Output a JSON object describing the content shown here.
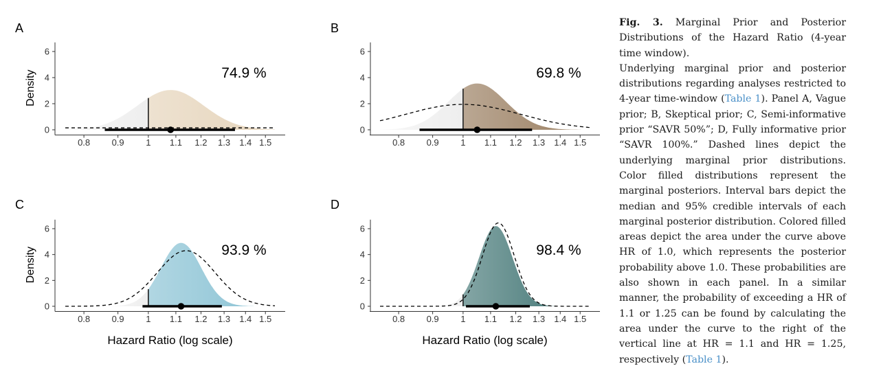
{
  "caption": {
    "label": "Fig. 3.",
    "title": "Marginal Prior and Posterior Distributions of the Hazard Ratio (4-year time window).",
    "body_before_link1": "Underlying marginal prior and posterior distributions regarding analyses restricted to 4-year time-window (",
    "link1": "Table 1",
    "body_after_link1": "). Panel A, Vague prior; B, Skeptical prior; C, Semi-informative prior “SAVR 50%”; D, Fully informative prior “SAVR 100%.” Dashed lines depict the underlying marginal prior distributions. Color filled distributions represent the marginal posteriors. Interval bars depict the median and 95% credible intervals of each marginal posterior distribution. Colored filled areas depict the area under the curve above HR of 1.0, which represents the posterior probability above 1.0. These probabilities are also shown in each panel. In a similar manner, the probability of exceeding a HR of 1.1 or 1.25 can be found by calculating the area under the curve to the right of the vertical line at HR = 1.1 and HR = 1.25, respectively (",
    "link2": "Table 1",
    "body_after_link2": ")."
  },
  "chart_data": [
    {
      "type": "area",
      "panel": "A",
      "prob_label": "74.9 %",
      "ylabel": "Density",
      "xlabel": "",
      "x_scale": "log",
      "xlim": [
        0.75,
        1.55
      ],
      "ylim": [
        -0.4,
        7.0
      ],
      "xticks": [
        0.8,
        0.9,
        1,
        1.1,
        1.2,
        1.3,
        1.4,
        1.5
      ],
      "xtick_labels": [
        "0.8",
        "0.9",
        "1",
        "1.1",
        "1.2",
        "1.3",
        "1.4",
        "1.5"
      ],
      "yticks": [
        0,
        2,
        4,
        6
      ],
      "posterior": {
        "median": 1.08,
        "ci": [
          0.86,
          1.35
        ],
        "sd_log": 0.115,
        "peak_density": 3.05
      },
      "prior": {
        "median": 1.0,
        "sd_log": 3.0,
        "peak_density": 0.15
      },
      "threshold": 1.0,
      "fill_color": "#e6d5bc"
    },
    {
      "type": "area",
      "panel": "B",
      "prob_label": "69.8 %",
      "ylabel": "",
      "xlabel": "",
      "x_scale": "log",
      "xlim": [
        0.75,
        1.55
      ],
      "ylim": [
        -0.4,
        7.0
      ],
      "xticks": [
        0.8,
        0.9,
        1,
        1.1,
        1.2,
        1.3,
        1.4,
        1.5
      ],
      "xtick_labels": [
        "0.8",
        "0.9",
        "1",
        "1.1",
        "1.2",
        "1.3",
        "1.4",
        "1.5"
      ],
      "yticks": [
        0,
        2,
        4,
        6
      ],
      "posterior": {
        "median": 1.05,
        "ci": [
          0.86,
          1.27
        ],
        "sd_log": 0.1,
        "peak_density": 3.55
      },
      "prior": {
        "median": 1.0,
        "sd_log": 0.2,
        "peak_density": 1.95
      },
      "threshold": 1.0,
      "fill_color": "#9c8164"
    },
    {
      "type": "area",
      "panel": "C",
      "prob_label": "93.9 %",
      "ylabel": "Density",
      "xlabel": "Hazard Ratio (log scale)",
      "x_scale": "log",
      "xlim": [
        0.75,
        1.55
      ],
      "ylim": [
        -0.4,
        7.0
      ],
      "xticks": [
        0.8,
        0.9,
        1,
        1.1,
        1.2,
        1.3,
        1.4,
        1.5
      ],
      "xtick_labels": [
        "0.8",
        "0.9",
        "1",
        "1.1",
        "1.2",
        "1.3",
        "1.4",
        "1.5"
      ],
      "yticks": [
        0,
        2,
        4,
        6
      ],
      "posterior": {
        "median": 1.12,
        "ci": [
          0.98,
          1.29
        ],
        "sd_log": 0.07,
        "peak_density": 4.9
      },
      "prior": {
        "median": 1.14,
        "sd_log": 0.1,
        "peak_density": 4.3
      },
      "threshold": 1.0,
      "fill_color": "#8fc5d6"
    },
    {
      "type": "area",
      "panel": "D",
      "prob_label": "98.4 %",
      "ylabel": "",
      "xlabel": "Hazard Ratio (log scale)",
      "x_scale": "log",
      "xlim": [
        0.75,
        1.55
      ],
      "ylim": [
        -0.4,
        7.0
      ],
      "xticks": [
        0.8,
        0.9,
        1,
        1.1,
        1.2,
        1.3,
        1.4,
        1.5
      ],
      "xtick_labels": [
        "0.8",
        "0.9",
        "1",
        "1.1",
        "1.2",
        "1.3",
        "1.4",
        "1.5"
      ],
      "yticks": [
        0,
        2,
        4,
        6
      ],
      "posterior": {
        "median": 1.12,
        "ci": [
          1.01,
          1.26
        ],
        "sd_log": 0.058,
        "peak_density": 6.2
      },
      "prior": {
        "median": 1.13,
        "sd_log": 0.055,
        "peak_density": 6.45
      },
      "threshold": 1.0,
      "fill_color": "#4f7f7e"
    }
  ]
}
